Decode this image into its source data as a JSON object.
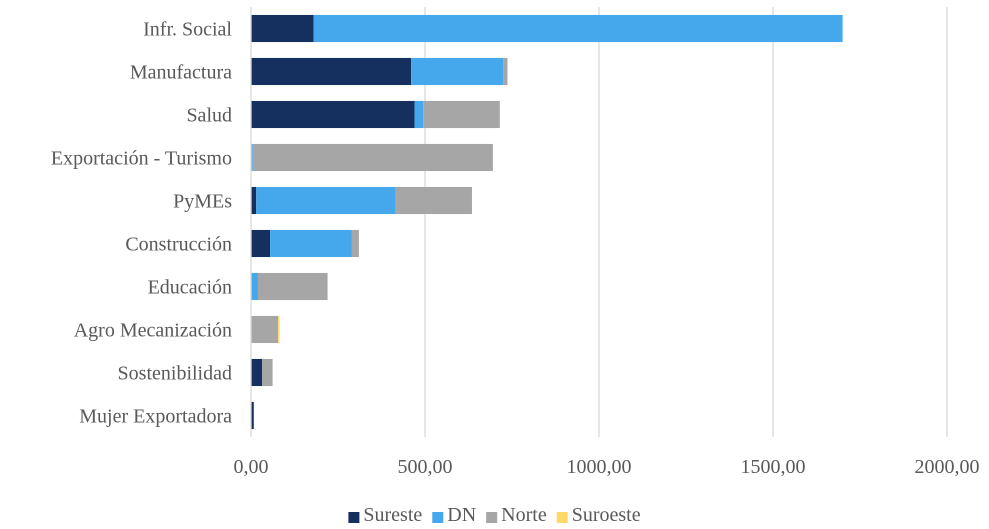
{
  "chart_data": {
    "type": "bar",
    "orientation": "horizontal",
    "stacked": true,
    "categories": [
      "Infr. Social",
      "Manufactura",
      "Salud",
      "Exportación - Turismo",
      "PyMEs",
      "Construcción",
      "Educación",
      "Agro Mecanización",
      "Sostenibilidad",
      "Mujer Exportadora"
    ],
    "series": [
      {
        "name": "Sureste",
        "color": "#15305f",
        "values": [
          180,
          460,
          470,
          0,
          15,
          55,
          0,
          0,
          32,
          8
        ]
      },
      {
        "name": "DN",
        "color": "#45a8ec",
        "values": [
          1520,
          265,
          25,
          5,
          400,
          235,
          20,
          0,
          0,
          0
        ]
      },
      {
        "name": "Norte",
        "color": "#a6a6a6",
        "values": [
          0,
          12,
          220,
          690,
          220,
          20,
          200,
          78,
          30,
          0
        ]
      },
      {
        "name": "Suroeste",
        "color": "#ffd966",
        "values": [
          0,
          0,
          0,
          0,
          0,
          0,
          0,
          4,
          0,
          0
        ]
      }
    ],
    "xlim": [
      0,
      2000
    ],
    "xticks": [
      0,
      500,
      1000,
      1500,
      2000
    ],
    "xtick_labels": [
      "0,00",
      "500,00",
      "1000,00",
      "1500,00",
      "2000,00"
    ],
    "grid": "vertical",
    "legend_position": "bottom",
    "title": "",
    "xlabel": "",
    "ylabel": ""
  }
}
